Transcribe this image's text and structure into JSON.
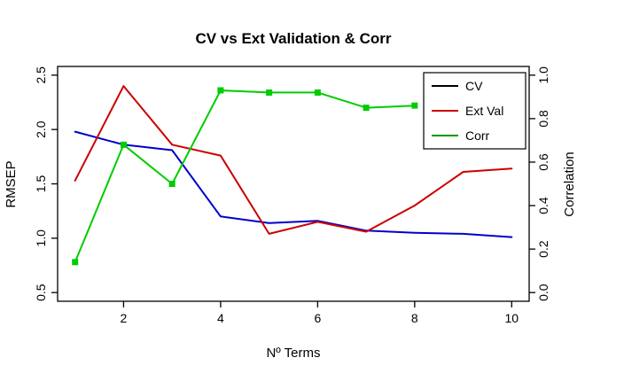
{
  "chart_data": {
    "type": "line",
    "title": "CV vs Ext Validation & Corr",
    "xlabel": "Nº Terms",
    "ylabel_left": "RMSEP",
    "ylabel_right": "Correlation",
    "xlim": [
      1,
      10
    ],
    "ylim_left": [
      0.5,
      2.5
    ],
    "ylim_right": [
      0.0,
      1.0
    ],
    "x_ticks": [
      2,
      4,
      6,
      8,
      10
    ],
    "y_ticks_left": [
      0.5,
      1.0,
      1.5,
      2.0,
      2.5
    ],
    "y_ticks_right": [
      0.0,
      0.2,
      0.4,
      0.6,
      0.8,
      1.0
    ],
    "grid": false,
    "legend_position": "top-right",
    "x": [
      1,
      2,
      3,
      4,
      5,
      6,
      7,
      8,
      9,
      10
    ],
    "series": [
      {
        "name": "CV",
        "axis": "left",
        "color": "#0000CC",
        "legend_color": "#000000",
        "marker": "none",
        "values": [
          1.98,
          1.86,
          1.81,
          1.2,
          1.14,
          1.16,
          1.07,
          1.05,
          1.04,
          1.01
        ]
      },
      {
        "name": "Ext Val",
        "axis": "left",
        "color": "#CC0000",
        "legend_color": "#CC0000",
        "marker": "none",
        "values": [
          1.53,
          2.4,
          1.86,
          1.76,
          1.04,
          1.15,
          1.06,
          1.3,
          1.61,
          1.64
        ]
      },
      {
        "name": "Corr",
        "axis": "right",
        "color": "#00CC00",
        "legend_color": "#009900",
        "marker": "square",
        "values": [
          0.14,
          0.68,
          0.5,
          0.93,
          0.92,
          0.92,
          0.85,
          0.86,
          null,
          null
        ]
      }
    ],
    "colors": {
      "axis": "#000000",
      "axis_right_text": "#44CC44",
      "background": "#FFFFFF"
    }
  }
}
